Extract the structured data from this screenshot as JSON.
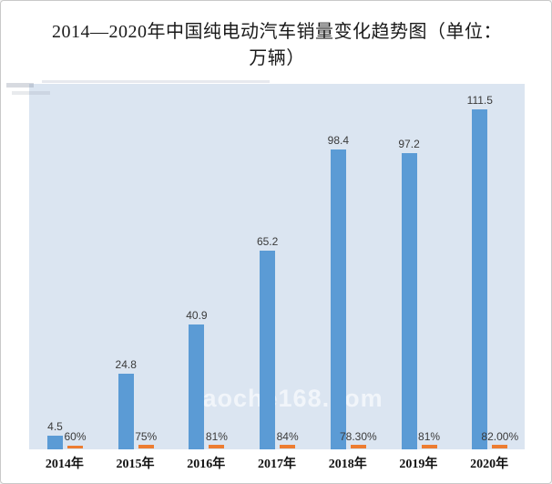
{
  "frame": {
    "background": "#ffffff",
    "border_color": "#c9c9c9"
  },
  "title": "2014—2020年中国纯电动汽车销量变化趋势图（单位：万辆）",
  "watermark": "zaoche168.com",
  "chart_data": {
    "type": "bar",
    "title": "2014—2020年中国纯电动汽车销量变化趋势图（单位：万辆）",
    "categories": [
      "2014年",
      "2015年",
      "2016年",
      "2017年",
      "2018年",
      "2019年",
      "2020年"
    ],
    "series": [
      {
        "role": "sales-volume-bars",
        "color": "#5b9bd5",
        "values": [
          4.5,
          24.8,
          40.9,
          65.2,
          98.4,
          97.2,
          111.5
        ],
        "data_labels": [
          "4.5",
          "24.8",
          "40.9",
          "65.2",
          "98.4",
          "97.2",
          "111.5"
        ]
      },
      {
        "role": "percent-markers",
        "color": "#ed7d31",
        "values": [
          60,
          75,
          81,
          84,
          78.3,
          81,
          82
        ],
        "data_labels": [
          "60%",
          "75%",
          "81%",
          "84%",
          "78.30%",
          "81%",
          "82.00%"
        ]
      }
    ],
    "ylabel": "",
    "xlabel": "",
    "ylim": [
      0,
      120
    ],
    "grid": false,
    "legend": "none",
    "plot_background": "#dbe5f1"
  }
}
